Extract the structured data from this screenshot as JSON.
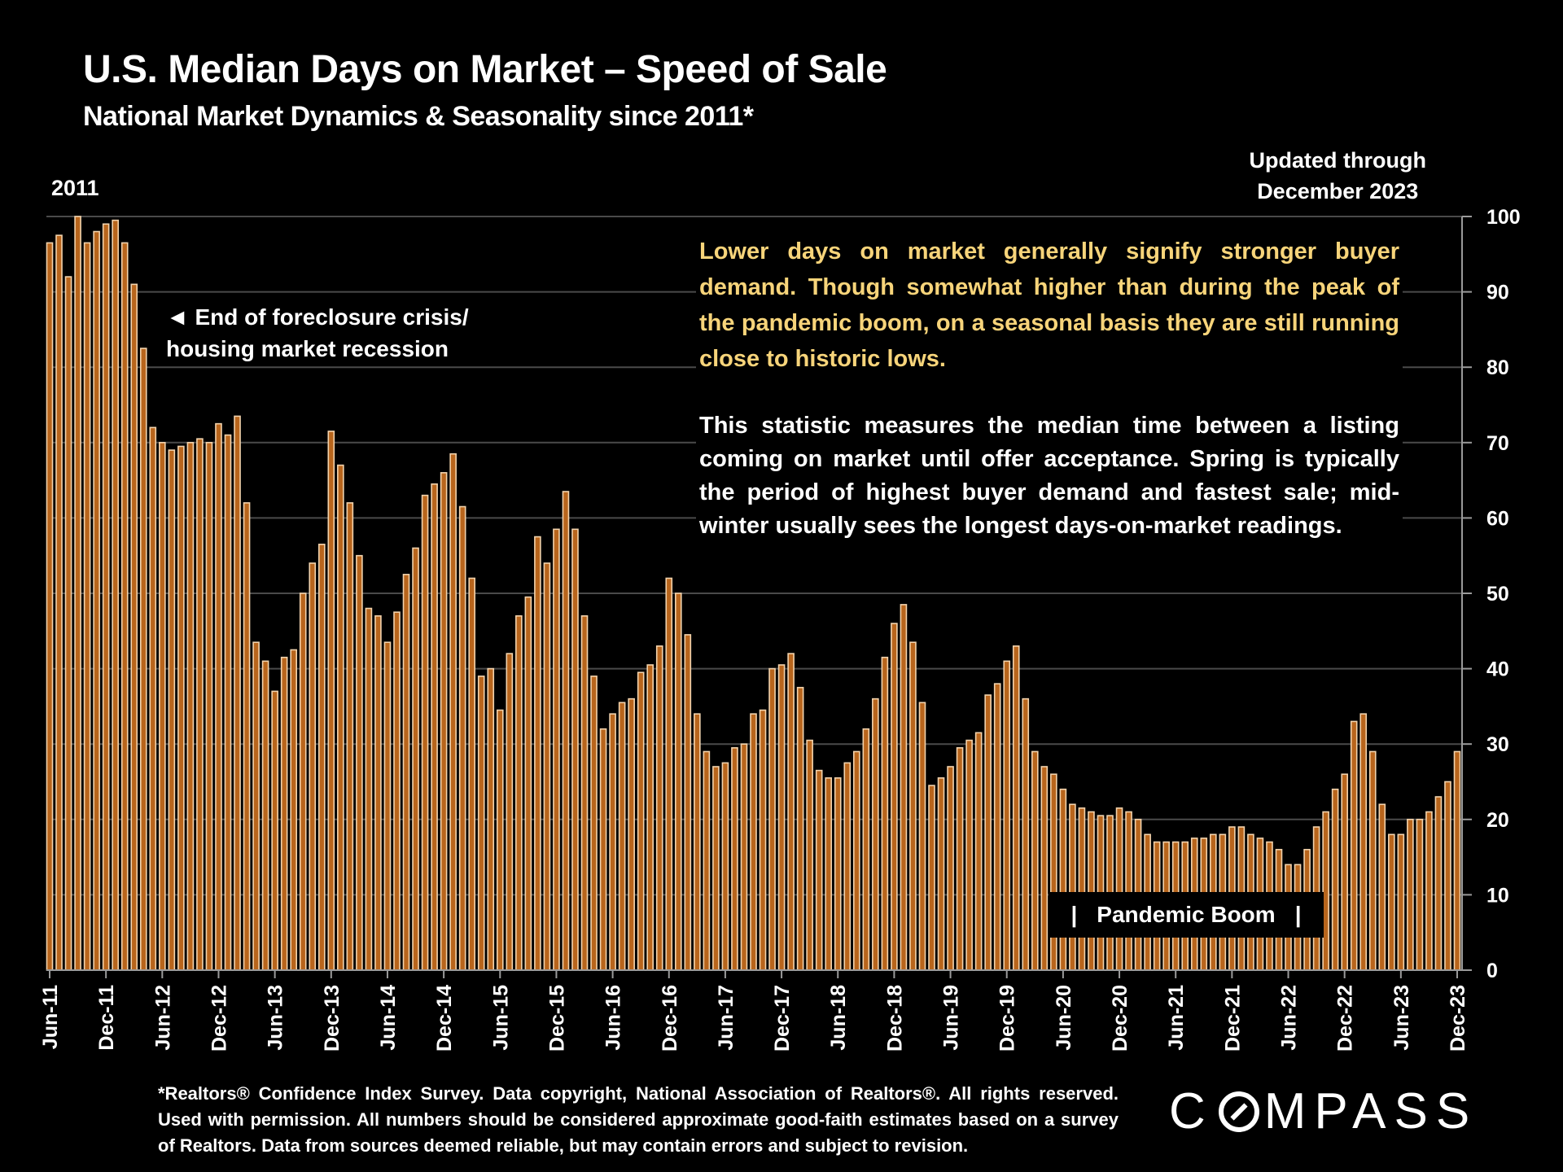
{
  "header": {
    "title": "U.S. Median Days on Market – Speed of Sale",
    "subtitle": "National Market Dynamics & Seasonality since 2011*",
    "year_label": "2011",
    "updated_line1": "Updated through",
    "updated_line2": "December 2023"
  },
  "annotations": {
    "callout_arrow": "◄",
    "callout_line1": "End of foreclosure crisis/",
    "callout_line2": "housing market recession",
    "note_yellow": "Lower days on market generally signify stronger buyer demand. Though somewhat higher than during the peak of the pandemic boom, on a seasonal basis they are still running close to historic lows.",
    "note_white": "This statistic measures the median time between a listing coming on market until offer acceptance. Spring is typically the period of highest buyer demand and fastest sale; mid-winter usually sees the longest days-on-market readings.",
    "pandemic_bar_left": "|",
    "pandemic_label": "Pandemic Boom",
    "pandemic_bar_right": "|"
  },
  "footer": {
    "text": "*Realtors® Confidence Index Survey. Data copyright, National Association of Realtors®. All rights reserved. Used with permission. All numbers should be considered approximate good-faith estimates based on a survey of Realtors. Data from sources deemed reliable, but may contain errors and subject to revision."
  },
  "logo": {
    "pre": "C",
    "post": "MPASS"
  },
  "colors": {
    "bar_fill": "#b8651c",
    "bar_edge": "#f2d3ad",
    "grid": "#4a4a4a",
    "axis": "#9a9a9a",
    "note_yellow": "#f7d47a",
    "background": "#000000"
  },
  "chart_data": {
    "type": "bar",
    "title": "U.S. Median Days on Market – Speed of Sale",
    "xlabel": "",
    "ylabel": "Median Days on Market",
    "ylim": [
      0,
      100
    ],
    "yticks": [
      0,
      10,
      20,
      30,
      40,
      50,
      60,
      70,
      80,
      90,
      100
    ],
    "grid": true,
    "y_axis_side": "right",
    "start_month": "Jun-11",
    "end_month": "Dec-23",
    "xtick_labels": [
      "Jun-11",
      "Dec-11",
      "Jun-12",
      "Dec-12",
      "Jun-13",
      "Dec-13",
      "Jun-14",
      "Dec-14",
      "Jun-15",
      "Dec-15",
      "Jun-16",
      "Dec-16",
      "Jun-17",
      "Dec-17",
      "Jun-18",
      "Dec-18",
      "Jun-19",
      "Dec-19",
      "Jun-20",
      "Dec-20",
      "Jun-21",
      "Dec-21",
      "Jun-22",
      "Dec-22",
      "Jun-23",
      "Dec-23"
    ],
    "values": [
      96.5,
      97.5,
      92,
      100,
      96.5,
      98,
      99,
      99.5,
      96.5,
      91,
      82.5,
      72,
      70,
      69,
      69.5,
      70,
      70.5,
      70,
      72.5,
      71,
      73.5,
      62,
      43.5,
      41,
      37,
      41.5,
      42.5,
      50,
      54,
      56.5,
      71.5,
      67,
      62,
      55,
      48,
      47,
      43.5,
      47.5,
      52.5,
      56,
      63,
      64.5,
      66,
      68.5,
      61.5,
      52,
      39,
      40,
      34.5,
      42,
      47,
      49.5,
      57.5,
      54,
      58.5,
      63.5,
      58.5,
      47,
      39,
      32,
      34,
      35.5,
      36,
      39.5,
      40.5,
      43,
      52,
      50,
      44.5,
      34,
      29,
      27,
      27.5,
      29.5,
      30,
      34,
      34.5,
      40,
      40.5,
      42,
      37.5,
      30.5,
      26.5,
      25.5,
      25.5,
      27.5,
      29,
      32,
      36,
      41.5,
      46,
      48.5,
      43.5,
      35.5,
      24.5,
      25.5,
      27,
      29.5,
      30.5,
      31.5,
      36.5,
      38,
      41,
      43,
      36,
      29,
      27,
      26,
      24,
      22,
      21.5,
      21,
      20.5,
      20.5,
      21.5,
      21,
      20,
      18,
      17,
      17,
      17,
      17,
      17.5,
      17.5,
      18,
      18,
      19,
      19,
      18,
      17.5,
      17,
      16,
      14,
      14,
      16,
      19,
      21,
      24,
      26,
      33,
      34,
      29,
      22,
      18,
      18,
      20,
      20,
      21,
      23,
      25,
      29
    ]
  }
}
